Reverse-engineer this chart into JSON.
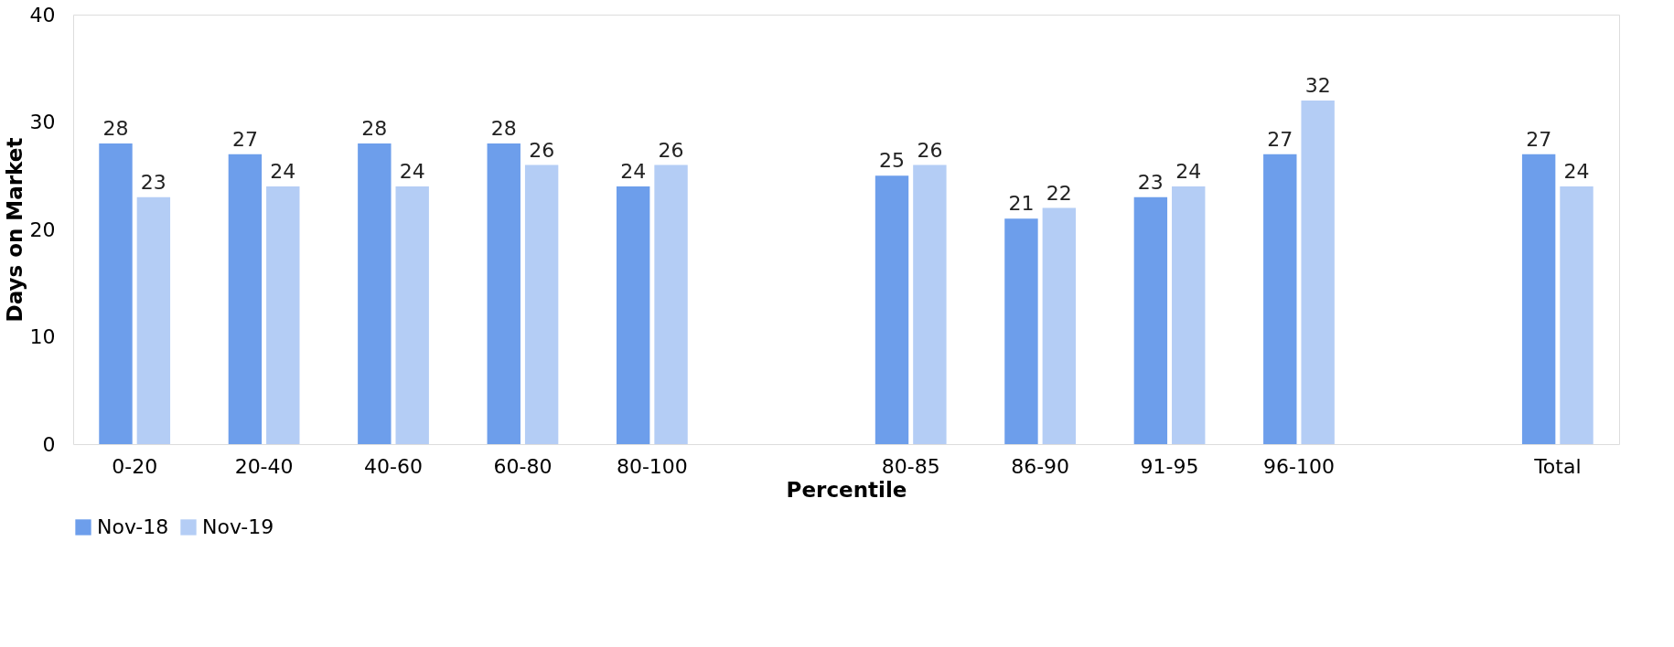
{
  "chart_data": {
    "type": "bar",
    "xlabel": "Percentile",
    "ylabel": "Days on Market",
    "categories": [
      "0-20",
      "20-40",
      "40-60",
      "60-80",
      "80-100",
      null,
      "80-85",
      "86-90",
      "91-95",
      "96-100",
      null,
      "Total"
    ],
    "series": [
      {
        "name": "Nov-18",
        "color": "#6d9eeb",
        "values": [
          28,
          27,
          28,
          28,
          24,
          null,
          25,
          21,
          23,
          27,
          null,
          27
        ]
      },
      {
        "name": "Nov-19",
        "color": "#b4cdf5",
        "values": [
          23,
          24,
          24,
          26,
          26,
          null,
          26,
          22,
          24,
          32,
          null,
          24
        ]
      }
    ],
    "ylim": [
      0,
      40
    ],
    "yticks": [
      0,
      10,
      20,
      30,
      40
    ],
    "grid": false,
    "legend": "bottom",
    "data_labels": true
  }
}
